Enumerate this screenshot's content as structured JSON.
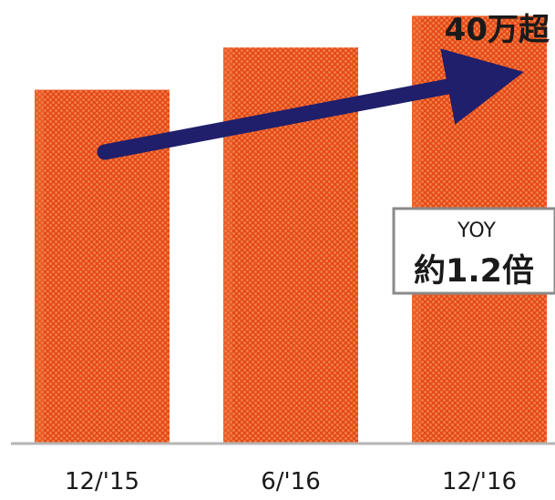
{
  "chart_data": {
    "type": "bar",
    "categories": [
      "12/'15",
      "6/'16",
      "12/'16"
    ],
    "values": [
      33.5,
      37.5,
      40.5
    ],
    "ylim": [
      0,
      42
    ],
    "grid": false,
    "bar_color": "#e8501e",
    "bar_highlight": "#f07a45",
    "arrow_color": "#1f1f6b",
    "annotations": {
      "top_label": "40万超",
      "yoy_label": "YOY",
      "yoy_value": "約1.2倍"
    }
  }
}
